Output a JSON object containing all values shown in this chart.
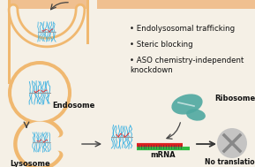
{
  "background_color": "#f5f0e6",
  "top_bar_color": "#f0c090",
  "membrane_color": "#f0b870",
  "endosome_color": "#f0b870",
  "lysosome_color": "#f0b870",
  "polymer_color": "#29abe2",
  "aso_color": "#e03030",
  "mrna_green_color": "#30bb44",
  "mrna_red_color": "#dd2020",
  "ribosome_color": "#4fa8a0",
  "no_translation_color": "#c0c0c0",
  "arrow_color": "#444444",
  "text_color": "#111111",
  "bullet_items": [
    "Endolysosomal trafficking",
    "Steric blocking",
    "ASO chemistry-independent\nknockdown"
  ],
  "endosome_label": "Endosome",
  "lysosome_label": "Lysosome",
  "mrna_label": "mRNA",
  "ribosome_label": "Ribosome",
  "no_translation_label": "No translation",
  "figsize": [
    2.89,
    1.89
  ],
  "dpi": 100
}
